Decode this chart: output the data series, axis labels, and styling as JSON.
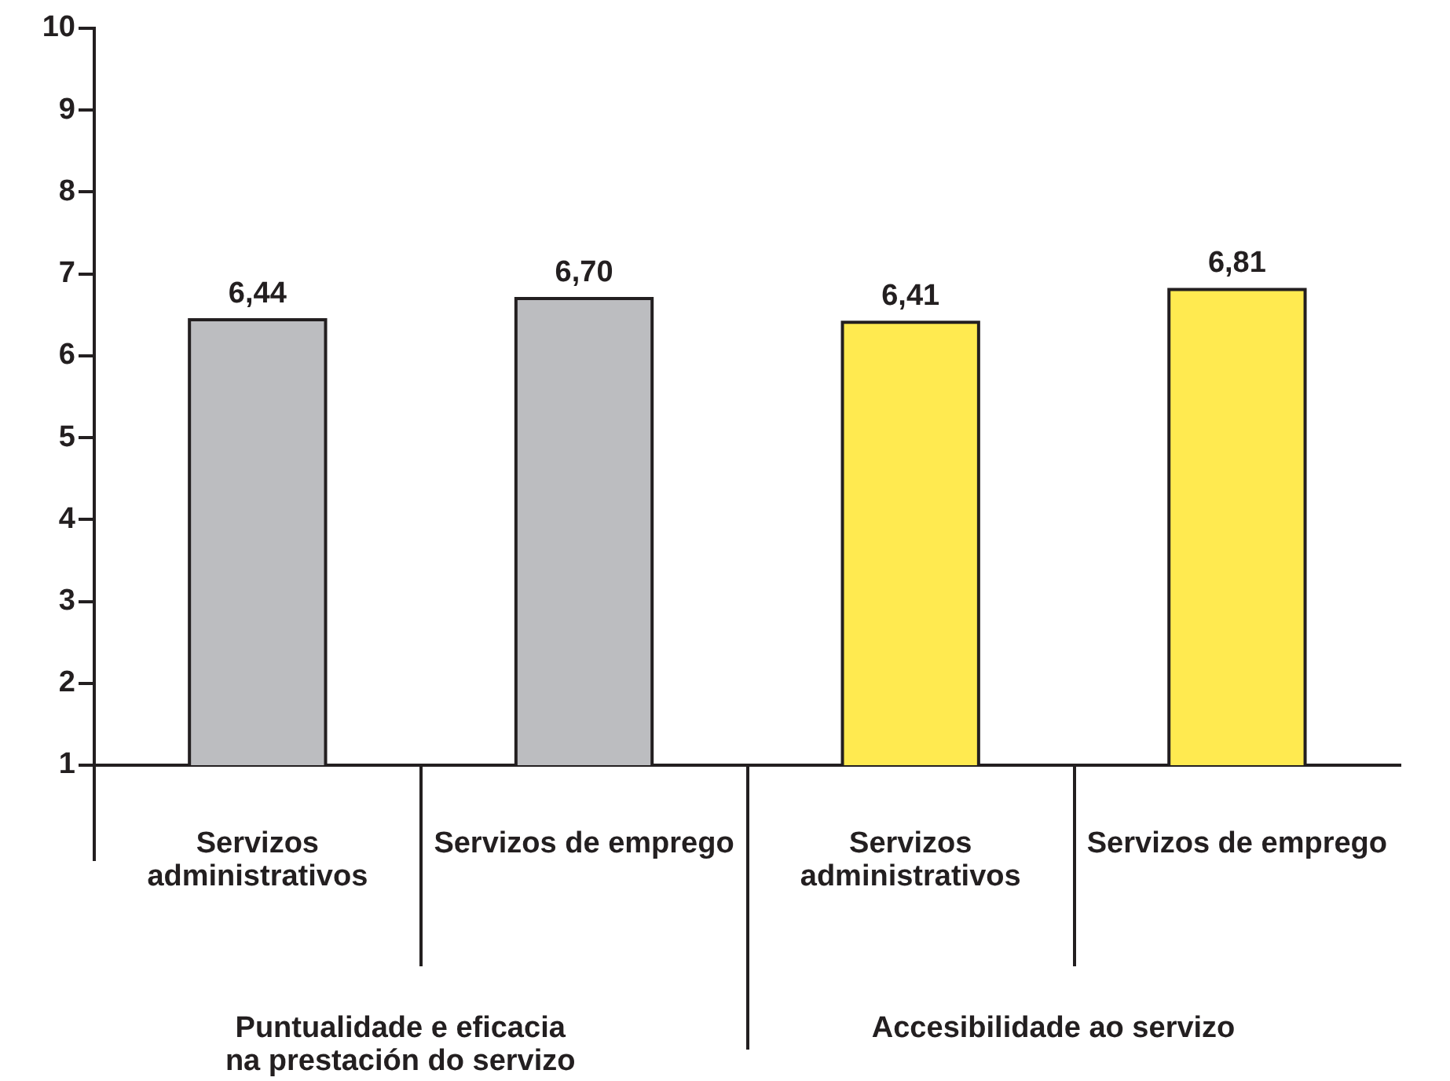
{
  "chart_data": {
    "type": "bar",
    "categories": [
      "Servizos administrativos",
      "Servizos de emprego",
      "Servizos administrativos",
      "Servizos de emprego"
    ],
    "values": [
      6.44,
      6.7,
      6.41,
      6.81
    ],
    "colors": [
      "#bcbdc0",
      "#bcbdc0",
      "#ffea50",
      "#ffea50"
    ],
    "value_labels": [
      "6,44",
      "6,70",
      "6,41",
      "6,81"
    ],
    "ylim": [
      1,
      10
    ],
    "yticks": [
      1,
      2,
      3,
      4,
      5,
      6,
      7,
      8,
      9,
      10
    ],
    "annotations": [
      "Puntualidade e eficacia na prestación do servizo",
      "Accesibilidade ao servizo"
    ]
  }
}
